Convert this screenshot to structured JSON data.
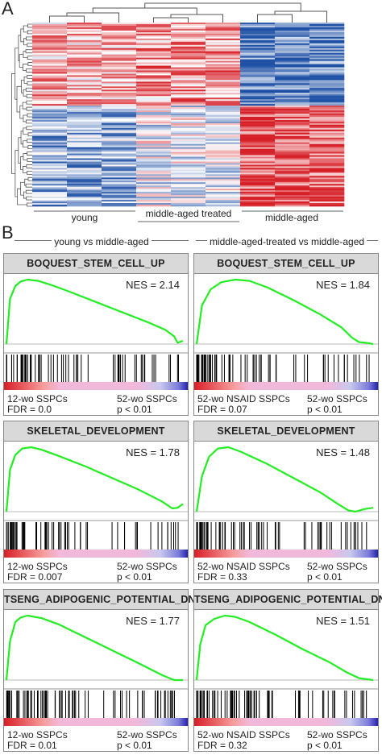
{
  "panel_labels": {
    "a": "A",
    "b": "B"
  },
  "colors": {
    "curve": "#22ee22",
    "red": "#d71f26",
    "blue": "#1e4fa3",
    "pink": "#f2b8da",
    "lavender": "#c8c8ee"
  },
  "chart_data": [
    {
      "type": "heatmap",
      "groups": [
        "young",
        "middle-aged treated",
        "middle-aged"
      ],
      "columns_per_group": 3,
      "color_scale": [
        "blue",
        "white",
        "red"
      ]
    },
    {
      "type": "line",
      "comparison": "young vs middle-aged",
      "title": "BOQUEST_STEM_CELL_UP",
      "nes": "NES = 2.14",
      "left_label": "12-wo SSPCs",
      "fdr": "FDR = 0.0",
      "right_label": "52-wo SSPCs",
      "p": "p < 0.01",
      "x": [
        0,
        0.02,
        0.05,
        0.08,
        0.12,
        0.18,
        0.25,
        0.35,
        0.5,
        0.65,
        0.8,
        0.9,
        0.95,
        0.97,
        1.0
      ],
      "y": [
        0,
        0.7,
        0.9,
        0.97,
        1.0,
        0.98,
        0.92,
        0.82,
        0.66,
        0.5,
        0.34,
        0.22,
        0.12,
        0.02,
        0.05
      ]
    },
    {
      "type": "line",
      "comparison": "middle-aged-treated vs middle-aged",
      "title": "BOQUEST_STEM_CELL_UP",
      "nes": "NES = 1.84",
      "left_label": "52-wo NSAID SSPCs",
      "fdr": "FDR = 0.07",
      "right_label": "52-wo SSPCs",
      "p": "p < 0.01",
      "x": [
        0,
        0.03,
        0.08,
        0.14,
        0.22,
        0.3,
        0.4,
        0.55,
        0.7,
        0.82,
        0.88,
        0.92,
        0.96,
        1.0
      ],
      "y": [
        0,
        0.6,
        0.85,
        0.96,
        1.0,
        0.98,
        0.88,
        0.68,
        0.46,
        0.26,
        0.1,
        0.03,
        0.02,
        0.0
      ]
    },
    {
      "type": "line",
      "title": "SKELETAL_DEVELOPMENT",
      "nes": "NES = 1.78",
      "left_label": "12-wo SSPCs",
      "fdr": "FDR = 0.007",
      "right_label": "52-wo SSPCs",
      "p": "p < 0.01",
      "x": [
        0,
        0.02,
        0.05,
        0.09,
        0.14,
        0.2,
        0.3,
        0.45,
        0.6,
        0.75,
        0.88,
        0.94,
        0.97,
        1.0
      ],
      "y": [
        0,
        0.65,
        0.88,
        0.98,
        1.0,
        0.96,
        0.86,
        0.7,
        0.52,
        0.34,
        0.16,
        0.05,
        0.06,
        0.12
      ]
    },
    {
      "type": "line",
      "title": "SKELETAL_DEVELOPMENT",
      "nes": "NES = 1.48",
      "left_label": "52-wo NSAID SSPCs",
      "fdr": "FDR = 0.33",
      "right_label": "52-wo SSPCs",
      "p": "p < 0.01",
      "x": [
        0,
        0.03,
        0.07,
        0.12,
        0.18,
        0.25,
        0.4,
        0.55,
        0.7,
        0.8,
        0.86,
        0.9,
        0.95,
        1.0
      ],
      "y": [
        0,
        0.55,
        0.85,
        0.98,
        1.0,
        0.93,
        0.74,
        0.52,
        0.3,
        0.12,
        0.02,
        0.0,
        0.04,
        0.06
      ]
    },
    {
      "type": "line",
      "title": "TSENG_ADIPOGENIC_POTENTIAL_DN",
      "nes": "NES = 1.77",
      "left_label": "12-wo SSPCs",
      "fdr": "FDR = 0.01",
      "right_label": "52-wo SSPCs",
      "p": "p < 0.01",
      "x": [
        0,
        0.02,
        0.05,
        0.08,
        0.12,
        0.2,
        0.3,
        0.45,
        0.6,
        0.75,
        0.88,
        0.95,
        1.0
      ],
      "y": [
        0,
        0.6,
        0.9,
        0.97,
        1.0,
        0.96,
        0.86,
        0.66,
        0.46,
        0.26,
        0.08,
        0.0,
        0.0
      ]
    },
    {
      "type": "line",
      "title": "TSENG_ADIPOGENIC_POTENTIAL_DN",
      "nes": "NES = 1.51",
      "left_label": "52-wo NSAID SSPCs",
      "fdr": "FDR = 0.32",
      "right_label": "52-wo SSPCs",
      "p": "p < 0.01",
      "x": [
        0,
        0.02,
        0.05,
        0.1,
        0.16,
        0.22,
        0.3,
        0.45,
        0.6,
        0.75,
        0.85,
        0.92,
        1.0
      ],
      "y": [
        0,
        0.55,
        0.85,
        0.95,
        1.0,
        0.98,
        0.9,
        0.7,
        0.48,
        0.28,
        0.12,
        0.03,
        0.0
      ]
    }
  ]
}
